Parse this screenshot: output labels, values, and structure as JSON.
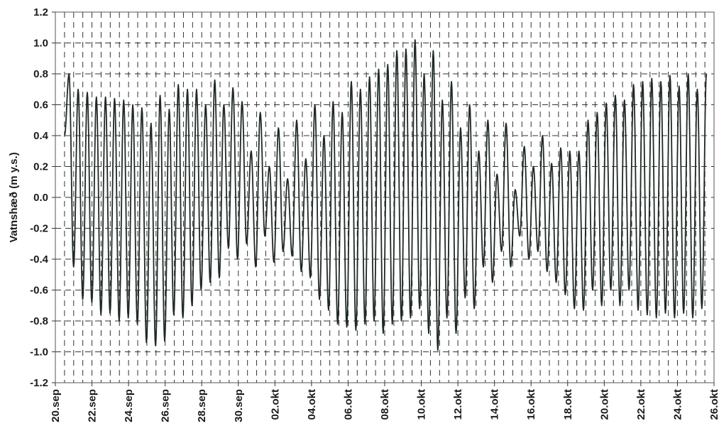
{
  "chart_data": {
    "type": "line",
    "title": "",
    "xlabel": "",
    "ylabel": "Vatnshæð (m y.s.)",
    "ylim": [
      -1.2,
      1.2
    ],
    "yticks": [
      "1.2",
      "1.0",
      "0.8",
      "0.6",
      "0.4",
      "0.2",
      "0.0",
      "-0.2",
      "-0.4",
      "-0.6",
      "-0.8",
      "-1.0",
      "-1.2"
    ],
    "xlim": [
      "2000-09-20",
      "2000-10-26"
    ],
    "xticks": [
      "20.sep",
      "22.sep",
      "24.sep",
      "26.sep",
      "28.sep",
      "30.sep",
      "02.okt",
      "04.okt",
      "06.okt",
      "08.okt",
      "10.okt",
      "12.okt",
      "14.okt",
      "16.okt",
      "18.okt",
      "20.okt",
      "22.okt",
      "24.okt",
      "26.okt"
    ],
    "grid": true,
    "grid_style": "dashed",
    "line_color": "#1f2a24",
    "tide_period_hours": 12.42,
    "series": [
      {
        "name": "",
        "start": "2000-09-20 12:00",
        "end": "2000-10-25 14:00",
        "start_value": 0.4,
        "highs": [
          0.8,
          0.7,
          0.68,
          0.65,
          0.65,
          0.64,
          0.63,
          0.6,
          0.58,
          0.48,
          0.66,
          0.57,
          0.73,
          0.7,
          0.7,
          0.6,
          0.76,
          0.6,
          0.71,
          0.62,
          0.3,
          0.55,
          0.2,
          0.45,
          0.12,
          0.5,
          0.25,
          0.6,
          0.4,
          0.62,
          0.55,
          0.75,
          0.7,
          0.78,
          0.83,
          0.86,
          0.95,
          0.96,
          1.02,
          0.8,
          0.95,
          0.63,
          0.75,
          0.45,
          0.6,
          0.3,
          0.5,
          0.15,
          0.48,
          0.05,
          0.33,
          0.2,
          0.4,
          0.22,
          0.32,
          0.3,
          0.3,
          0.5,
          0.55,
          0.61,
          0.66,
          0.63,
          0.73,
          0.75,
          0.77,
          0.75,
          0.79,
          0.72,
          0.8,
          0.7,
          0.8
        ],
        "lows": [
          -0.45,
          -0.66,
          -0.68,
          -0.76,
          -0.75,
          -0.8,
          -0.78,
          -0.82,
          -0.94,
          -0.96,
          -0.93,
          -0.76,
          -0.78,
          -0.7,
          -0.6,
          -0.55,
          -0.52,
          -0.33,
          -0.4,
          -0.3,
          -0.45,
          -0.25,
          -0.42,
          -0.35,
          -0.38,
          -0.48,
          -0.52,
          -0.66,
          -0.73,
          -0.82,
          -0.84,
          -0.86,
          -0.82,
          -0.8,
          -0.88,
          -0.82,
          -0.8,
          -0.78,
          -0.72,
          -0.88,
          -0.99,
          -0.78,
          -0.88,
          -0.65,
          -0.72,
          -0.45,
          -0.55,
          -0.35,
          -0.45,
          -0.25,
          -0.4,
          -0.35,
          -0.48,
          -0.55,
          -0.63,
          -0.72,
          -0.73,
          -0.6,
          -0.7,
          -0.6,
          -0.7,
          -0.6,
          -0.73,
          -0.76,
          -0.78,
          -0.75,
          -0.78,
          -0.75,
          -0.78,
          -0.72
        ]
      }
    ]
  }
}
